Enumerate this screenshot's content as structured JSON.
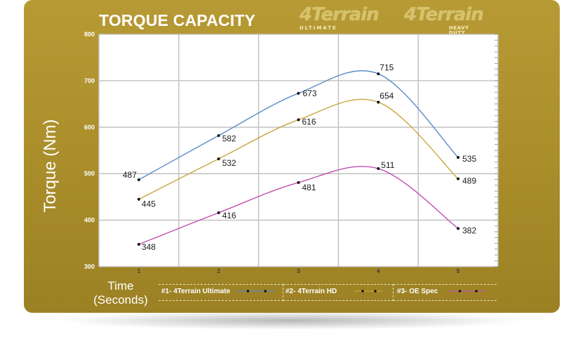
{
  "header": {
    "title": "TORQUE CAPACITY",
    "logo_ultimate": {
      "brand": "4Terrain",
      "tag": "ULTIMATE"
    },
    "logo_heavy_duty": {
      "brand": "4Terrain",
      "tag": "HEAVY DUTY"
    }
  },
  "colors": {
    "panel": "#b09430",
    "ultimate": "#5b8cc8",
    "hd": "#c9a53b",
    "oe": "#c24fb0",
    "grid": "#c2c2c2"
  },
  "chart_data": {
    "type": "line",
    "title": "TORQUE CAPACITY",
    "xlabel": "Time (Seconds)",
    "xlabel_lines": [
      "Time",
      "(Seconds)"
    ],
    "ylabel": "Torque (Nm)",
    "x": [
      1,
      2,
      3,
      4,
      5
    ],
    "xlim": [
      0.5,
      5.5
    ],
    "ylim": [
      300,
      800
    ],
    "yticks": [
      300,
      400,
      500,
      600,
      700,
      800
    ],
    "grid": true,
    "legend_position": "bottom",
    "series": [
      {
        "name": "#1- 4Terrain Ultimate",
        "color": "#5b8cc8",
        "values": [
          487,
          582,
          673,
          715,
          535
        ]
      },
      {
        "name": "#2- 4Terrain HD",
        "color": "#c9a53b",
        "values": [
          445,
          532,
          616,
          654,
          489
        ]
      },
      {
        "name": "#3- OE Spec",
        "color": "#c24fb0",
        "values": [
          348,
          416,
          481,
          511,
          382
        ]
      }
    ]
  }
}
